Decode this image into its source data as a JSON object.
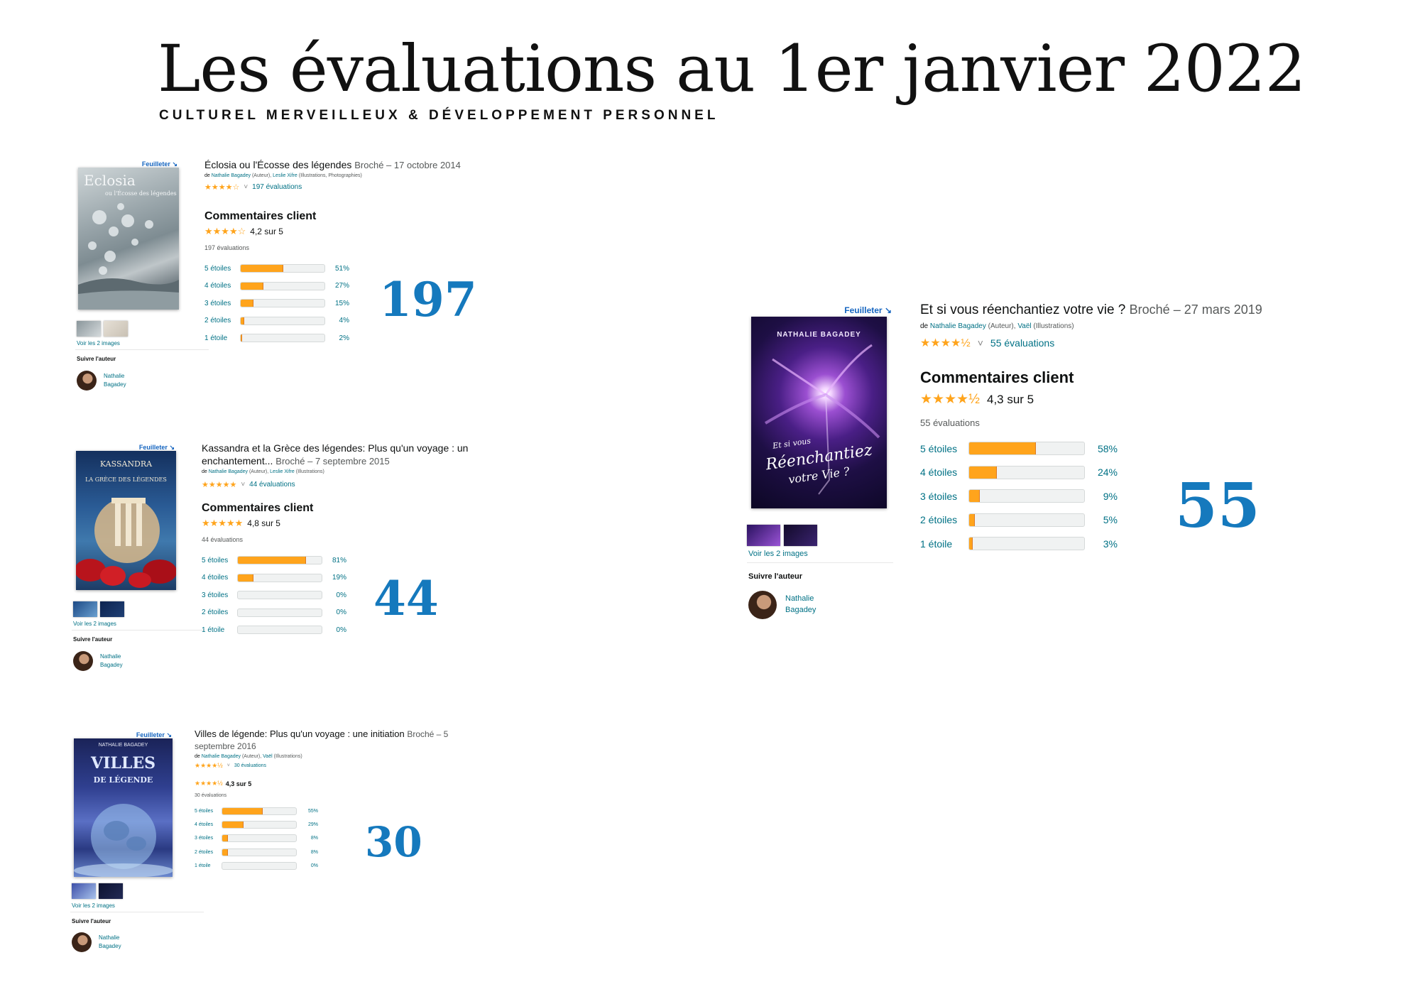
{
  "header": {
    "title": "Les évaluations au 1er janvier 2022",
    "subtitle": "CULTUREL MERVEILLEUX & DÉVELOPPEMENT PERSONNEL"
  },
  "common": {
    "feuilleter": "Feuilleter",
    "voir_images": "Voir les 2 images",
    "suivre": "Suivre l'auteur",
    "author_first": "Nathalie",
    "author_last": "Bagadey",
    "comments_header": "Commentaires client",
    "rating_labels": [
      "5 étoiles",
      "4 étoiles",
      "3 étoiles",
      "2 étoiles",
      "1 étoile"
    ],
    "star_color": "#ffa41c",
    "link_color": "#007185",
    "big_number_color": "#1579bd"
  },
  "books": {
    "eclosia": {
      "title": "Éclosia ou l'Écosse des légendes",
      "format": "Broché – 17 octobre 2014",
      "by_prefix": "de",
      "author": "Nathalie Bagadey",
      "roles": "(Auteur),",
      "contributor": "Leslie Xifre",
      "contributor_role": "(Illustrations, Photographies)",
      "stars": "★★★★☆",
      "ratings_link": "197 évaluations",
      "average": "4,2 sur 5",
      "ratings_count": "197 évaluations",
      "hist": [
        51,
        27,
        15,
        4,
        2
      ],
      "hist_text": [
        "51%",
        "27%",
        "15%",
        "4%",
        "2%"
      ],
      "big_number": "197",
      "cover_title": "Eclosia",
      "cover_sub": "ou l'Écosse des légendes"
    },
    "kassandra": {
      "title": "Kassandra et la Grèce des légendes: Plus qu'un voyage : un",
      "title2": "enchantement...",
      "format": "Broché – 7 septembre 2015",
      "by_prefix": "de",
      "author": "Nathalie Bagadey",
      "roles": "(Auteur),",
      "contributor": "Leslie Xifre",
      "contributor_role": "(Illustrations)",
      "stars": "★★★★★",
      "ratings_link": "44 évaluations",
      "average": "4,8 sur 5",
      "ratings_count": "44 évaluations",
      "hist": [
        81,
        19,
        0,
        0,
        0
      ],
      "hist_text": [
        "81%",
        "19%",
        "0%",
        "0%",
        "0%"
      ],
      "big_number": "44",
      "cover_title": "KASSANDRA",
      "cover_sub": "LA GRÈCE DES LÉGENDES"
    },
    "villes": {
      "title": "Villes de légende: Plus qu'un voyage : une initiation",
      "format": "Broché – 5",
      "format2": "septembre 2016",
      "by_prefix": "de",
      "author": "Nathalie Bagadey",
      "roles": "(Auteur),",
      "contributor": "Vaël",
      "contributor_role": "(Illustrations)",
      "stars": "★★★★½",
      "ratings_link": "30 évaluations",
      "average": "4,3 sur 5",
      "ratings_count": "30 évaluations",
      "hist": [
        55,
        29,
        8,
        8,
        0
      ],
      "hist_text": [
        "55%",
        "29%",
        "8%",
        "8%",
        "0%"
      ],
      "big_number": "30",
      "cover_author": "NATHALIE BAGADEY",
      "cover_title": "VILLES",
      "cover_sub": "DE LÉGENDE"
    },
    "reenchantiez": {
      "title": "Et si vous réenchantiez votre vie ?",
      "format": "Broché – 27 mars 2019",
      "by_prefix": "de",
      "author": "Nathalie Bagadey",
      "roles": "(Auteur),",
      "contributor": "Vaël",
      "contributor_role": "(Illustrations)",
      "stars": "★★★★½",
      "ratings_link": "55 évaluations",
      "average": "4,3 sur 5",
      "ratings_count": "55 évaluations",
      "hist": [
        58,
        24,
        9,
        5,
        3
      ],
      "hist_text": [
        "58%",
        "24%",
        "9%",
        "5%",
        "3%"
      ],
      "big_number": "55",
      "cover_author": "NATHALIE BAGADEY",
      "cover_line1": "Et si vous",
      "cover_line2": "Réenchantiez",
      "cover_line3": "votre Vie ?"
    }
  }
}
